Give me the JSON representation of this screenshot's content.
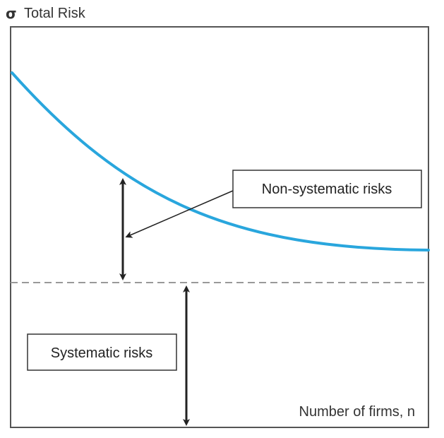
{
  "y_axis": {
    "symbol": "σ",
    "label": "Total Risk"
  },
  "x_axis": {
    "label": "Number of firms, n"
  },
  "labels": {
    "non_systematic": "Non-systematic risks",
    "systematic": "Systematic risks"
  },
  "colors": {
    "curve": "#29a6dd",
    "frame": "#555555",
    "arrow": "#222222",
    "dashed_line": "#999999"
  }
}
